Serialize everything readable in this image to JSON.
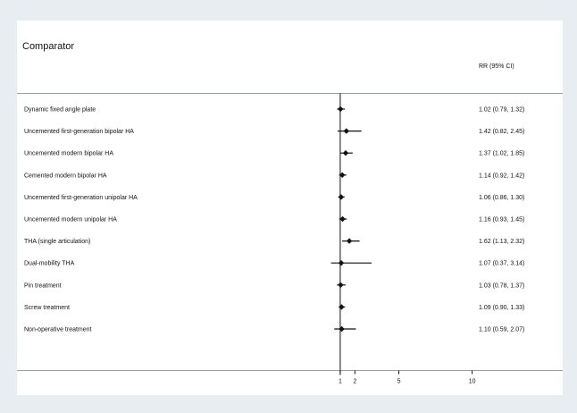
{
  "chart_data": {
    "type": "forest",
    "title": "Comparator",
    "column_header": "RR (95% CI)",
    "x_axis": {
      "scale": "linear",
      "range": [
        0,
        15.6
      ],
      "ticks": [
        1,
        2,
        5,
        10
      ],
      "reference_line": 1,
      "grid": false
    },
    "rows": [
      {
        "label": "Dynamic fixed angle plate",
        "rr": 1.02,
        "lower": 0.79,
        "upper": 1.32,
        "ci_text": "1.02 (0.79, 1.32)"
      },
      {
        "label": "Uncemented first-generation bipolar HA",
        "rr": 1.42,
        "lower": 0.82,
        "upper": 2.45,
        "ci_text": "1.42 (0.82, 2.45)"
      },
      {
        "label": "Uncemented modern bipolar HA",
        "rr": 1.37,
        "lower": 1.02,
        "upper": 1.85,
        "ci_text": "1.37 (1.02, 1.85)"
      },
      {
        "label": "Cemented modern bipolar HA",
        "rr": 1.14,
        "lower": 0.92,
        "upper": 1.42,
        "ci_text": "1.14 (0.92, 1.42)"
      },
      {
        "label": "Uncemented first-generation unipolar HA",
        "rr": 1.06,
        "lower": 0.86,
        "upper": 1.3,
        "ci_text": "1.06 (0.86, 1.30)"
      },
      {
        "label": "Uncemented modern unipolar HA",
        "rr": 1.16,
        "lower": 0.93,
        "upper": 1.45,
        "ci_text": "1.16 (0.93, 1.45)"
      },
      {
        "label": "THA (single articulation)",
        "rr": 1.62,
        "lower": 1.13,
        "upper": 2.32,
        "ci_text": "1.62 (1.13, 2.32)"
      },
      {
        "label": "Dual-mobility THA",
        "rr": 1.07,
        "lower": 0.37,
        "upper": 3.14,
        "ci_text": "1.07 (0.37, 3.14)"
      },
      {
        "label": "Pin treatment",
        "rr": 1.03,
        "lower": 0.78,
        "upper": 1.37,
        "ci_text": "1.03 (0.78, 1.37)"
      },
      {
        "label": "Screw treatment",
        "rr": 1.09,
        "lower": 0.9,
        "upper": 1.33,
        "ci_text": "1.09 (0.90, 1.33)"
      },
      {
        "label": "Non-operative treatment",
        "rr": 1.1,
        "lower": 0.59,
        "upper": 2.07,
        "ci_text": "1.10 (0.59, 2.07)"
      }
    ],
    "colors": {
      "background": "#e8edf1",
      "panel": "#ffffff",
      "ink": "#111111",
      "rule": "#9aa0a6"
    }
  }
}
